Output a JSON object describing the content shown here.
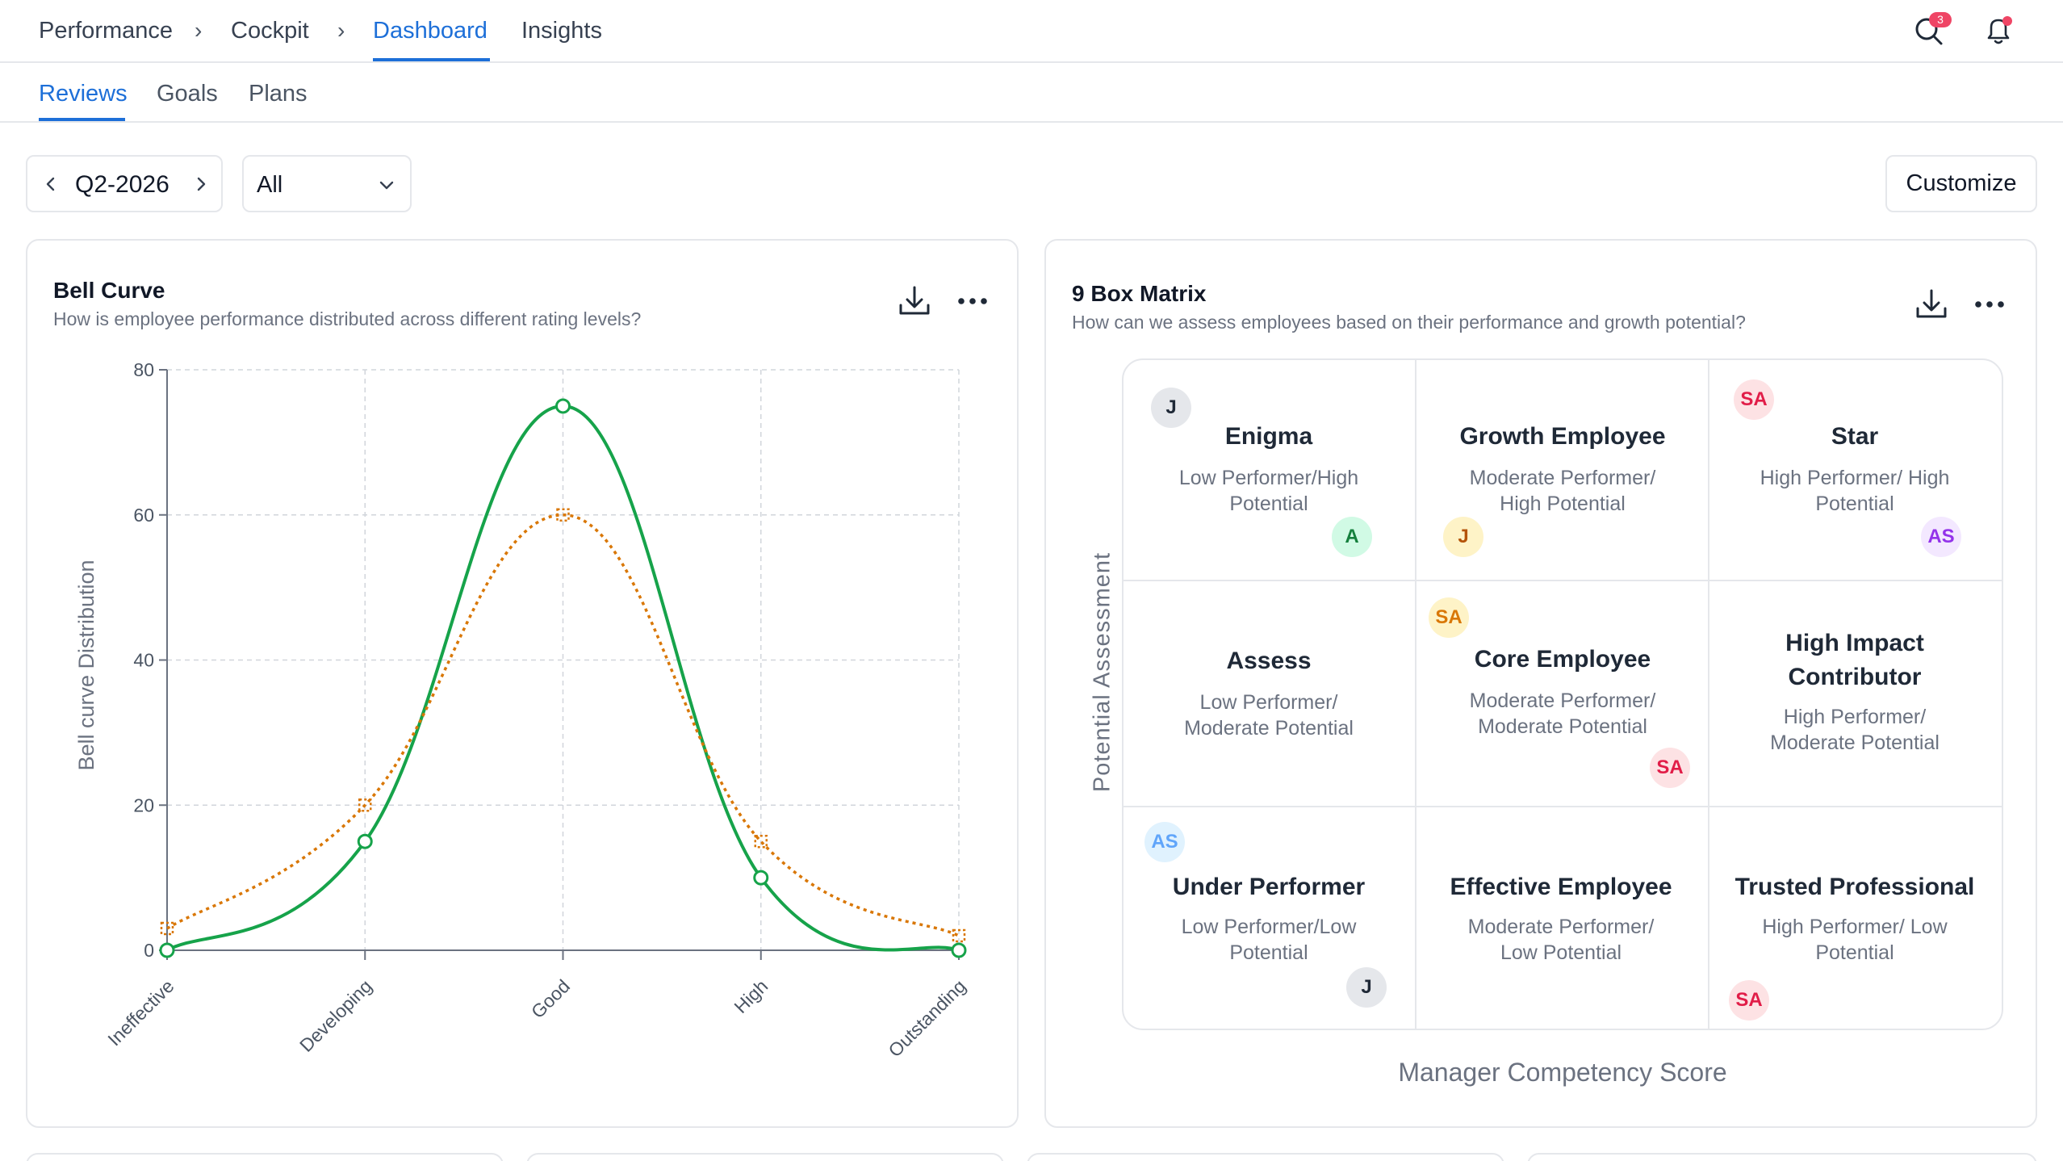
{
  "breadcrumb": {
    "items": [
      "Performance",
      "Cockpit",
      "Dashboard",
      "Insights"
    ],
    "separator": "›",
    "active": "Dashboard"
  },
  "header_icons": {
    "search": {
      "icon": "search-icon",
      "badge": "3"
    },
    "notifications": {
      "icon": "bell-icon",
      "dot_color": "#ef4565"
    }
  },
  "tabs": {
    "items": [
      "Reviews",
      "Goals",
      "Plans"
    ],
    "active": "Reviews"
  },
  "filters": {
    "quarter": "Q2-2026",
    "prev_icon": "chevron-left-icon",
    "next_icon": "chevron-right-icon",
    "select_value": "All",
    "customize_label": "Customize"
  },
  "bell_curve": {
    "title": "Bell Curve",
    "subtitle": "How is employee performance distributed across different rating levels?",
    "icons": [
      "download-icon",
      "more-icon"
    ]
  },
  "chart_data": {
    "type": "line",
    "categories": [
      "Ineffective",
      "Developing",
      "Good",
      "High",
      "Outstanding"
    ],
    "series": [
      {
        "values": [
          0,
          15,
          75,
          10,
          0
        ],
        "color": "#16a34a",
        "style": "solid",
        "marker": "circle"
      },
      {
        "values": [
          3,
          20,
          60,
          15,
          2
        ],
        "color": "#d97706",
        "style": "dotted",
        "marker": "square"
      }
    ],
    "ylabel": "Bell curve Distribution",
    "xlabel": "",
    "ylim": [
      0,
      80
    ],
    "yticks": [
      0,
      20,
      40,
      60,
      80
    ],
    "grid": true,
    "legend": "none"
  },
  "nine_box": {
    "title": "9 Box Matrix",
    "subtitle": "How can we assess employees based on their performance and growth potential?",
    "icons": [
      "download-icon",
      "more-icon"
    ],
    "ylabel": "Potential  Assessment",
    "xlabel": "Manager Competency Score",
    "cells": [
      {
        "title": "Enigma",
        "desc": "Low Performer/High Potential",
        "avatars": [
          "J",
          "A"
        ]
      },
      {
        "title": "Growth Employee",
        "desc": "Moderate Performer/ High Potential",
        "avatars": [
          "J"
        ]
      },
      {
        "title": "Star",
        "desc": "High Performer/ High Potential",
        "avatars": [
          "SA",
          "AS"
        ]
      },
      {
        "title": "Assess",
        "desc": "Low Performer/ Moderate Potential",
        "avatars": []
      },
      {
        "title": "Core Employee",
        "desc": "Moderate Performer/ Moderate Potential",
        "avatars": [
          "SA",
          "SA"
        ]
      },
      {
        "title": "High Impact Contributor",
        "desc": "High Performer/ Moderate Potential",
        "avatars": []
      },
      {
        "title": "Under Performer",
        "desc": "Low Performer/Low Potential",
        "avatars": [
          "AS",
          "J"
        ]
      },
      {
        "title": "Effective Employee",
        "desc": "Moderate Performer/ Low Potential",
        "avatars": []
      },
      {
        "title": "Trusted Professional",
        "desc": "High Performer/ Low Potential",
        "avatars": [
          "SA"
        ]
      }
    ]
  },
  "colors": {
    "accent": "#1d6fd8",
    "border": "#e5e7eb",
    "avatar_j": "#e5e7eb",
    "avatar_a": "#d1fae5",
    "avatar_j_yellow": "#fef3c7",
    "avatar_sa": "#fde2e4",
    "avatar_as_purple": "#f3e8ff",
    "avatar_as_blue": "#e0f2fe"
  }
}
